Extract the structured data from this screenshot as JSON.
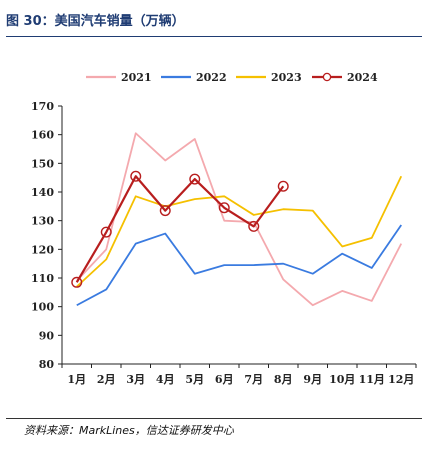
{
  "figure": {
    "title": "图 30：美国汽车销量（万辆）",
    "source": "资料来源：MarkLines，信达证券研发中心"
  },
  "chart_data": {
    "type": "line",
    "title": "",
    "xlabel": "",
    "ylabel": "",
    "categories": [
      "1月",
      "2月",
      "3月",
      "4月",
      "5月",
      "6月",
      "7月",
      "8月",
      "9月",
      "10月",
      "11月",
      "12月"
    ],
    "ylim": [
      80,
      170
    ],
    "yticks": [
      80,
      90,
      100,
      110,
      120,
      130,
      140,
      150,
      160,
      170
    ],
    "grid": false,
    "legend_position": "top",
    "series": [
      {
        "name": "2021",
        "color": "#f4a9ae",
        "markers": false,
        "values": [
          109,
          120,
          160.5,
          151,
          158.5,
          130,
          129.5,
          109.5,
          100.5,
          105.5,
          102,
          122
        ]
      },
      {
        "name": "2022",
        "color": "#3a7be0",
        "markers": false,
        "values": [
          100.5,
          106,
          122,
          125.5,
          111.5,
          114.5,
          114.5,
          115,
          111.5,
          118.5,
          113.5,
          128.5
        ]
      },
      {
        "name": "2023",
        "color": "#f5c000",
        "markers": false,
        "values": [
          107,
          116.5,
          138.5,
          135,
          137.5,
          138.5,
          132,
          134,
          133.5,
          121,
          124,
          145.5
        ]
      },
      {
        "name": "2024",
        "color": "#b81e1e",
        "markers": true,
        "values": [
          108.5,
          126,
          145.5,
          133.5,
          144.5,
          134.5,
          128,
          142,
          null,
          null,
          null,
          null
        ]
      }
    ]
  }
}
